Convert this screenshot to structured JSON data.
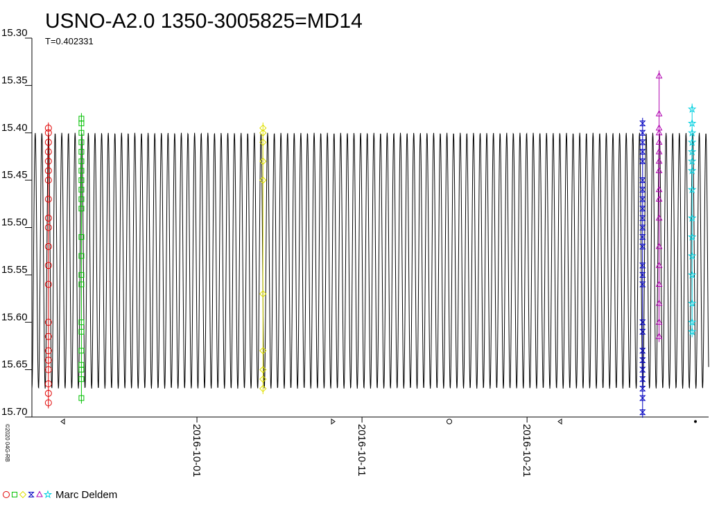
{
  "chart_data": {
    "type": "scatter",
    "title": "USNO-A2.0 1350-3005825=MD14",
    "subtitle": "T=0.402331",
    "credit": "©2020 04G-RB",
    "observer": "Marc Deldem",
    "xlim": [
      "2016-09-21",
      "2016-11-01"
    ],
    "xticks": [
      "2016-10-01",
      "2016-10-11",
      "2016-10-21"
    ],
    "ylim": [
      15.3,
      15.7
    ],
    "y_inverted": true,
    "yticks": [
      {
        "value": 15.3,
        "label": "15.30"
      },
      {
        "value": 15.35,
        "label": "15.35"
      },
      {
        "value": 15.4,
        "label": "15.40"
      },
      {
        "value": 15.45,
        "label": "15.45"
      },
      {
        "value": 15.5,
        "label": "15.50"
      },
      {
        "value": 15.55,
        "label": "15.55"
      },
      {
        "value": 15.6,
        "label": "15.60"
      },
      {
        "value": 15.65,
        "label": "15.65"
      },
      {
        "value": 15.7,
        "label": "15.70"
      }
    ],
    "model": {
      "period": 0.402331,
      "min": 15.4,
      "max": 15.67,
      "color": "#000000"
    },
    "series": [
      {
        "color": "#e00000",
        "marker": "circle",
        "x": "2016-09-22",
        "values": [
          15.395,
          15.4,
          15.41,
          15.42,
          15.43,
          15.44,
          15.45,
          15.47,
          15.49,
          15.5,
          15.52,
          15.54,
          15.56,
          15.6,
          15.615,
          15.63,
          15.64,
          15.65,
          15.665,
          15.675,
          15.685
        ]
      },
      {
        "color": "#00c000",
        "marker": "square",
        "x": "2016-09-24",
        "values": [
          15.385,
          15.39,
          15.4,
          15.41,
          15.42,
          15.43,
          15.44,
          15.45,
          15.46,
          15.47,
          15.48,
          15.51,
          15.53,
          15.55,
          15.56,
          15.6,
          15.61,
          15.63,
          15.645,
          15.65,
          15.66,
          15.68
        ]
      },
      {
        "color": "#e0e000",
        "marker": "diamond",
        "x": "2016-10-05",
        "values": [
          15.395,
          15.4,
          15.41,
          15.43,
          15.45,
          15.57,
          15.63,
          15.65,
          15.66,
          15.67
        ]
      },
      {
        "color": "#0000c0",
        "marker": "hourglass",
        "x": "2016-10-28",
        "values": [
          15.39,
          15.4,
          15.41,
          15.42,
          15.43,
          15.45,
          15.46,
          15.47,
          15.48,
          15.49,
          15.5,
          15.51,
          15.52,
          15.54,
          15.55,
          15.56,
          15.6,
          15.61,
          15.63,
          15.64,
          15.65,
          15.66,
          15.67,
          15.68,
          15.695
        ]
      },
      {
        "color": "#b000b0",
        "marker": "triangle",
        "x": "2016-10-29",
        "values": [
          15.34,
          15.38,
          15.395,
          15.4,
          15.41,
          15.42,
          15.43,
          15.44,
          15.46,
          15.47,
          15.49,
          15.52,
          15.54,
          15.56,
          15.58,
          15.6,
          15.615
        ]
      },
      {
        "color": "#00d0e0",
        "marker": "star",
        "x": "2016-10-31",
        "values": [
          15.375,
          15.39,
          15.4,
          15.41,
          15.42,
          15.43,
          15.44,
          15.46,
          15.49,
          15.51,
          15.53,
          15.55,
          15.58,
          15.6,
          15.61
        ]
      }
    ]
  }
}
